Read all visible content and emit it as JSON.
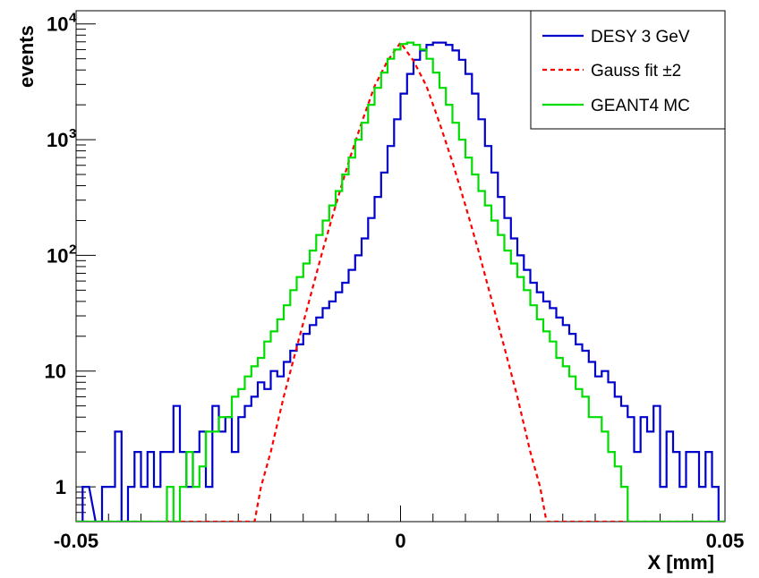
{
  "chart_data": {
    "type": "line",
    "title": "",
    "xlabel": "X [mm]",
    "ylabel": "events",
    "xlim": [
      -0.05,
      0.05
    ],
    "ylim": [
      0.5,
      13000
    ],
    "y_scale": "log",
    "grid": false,
    "legend_position": "top-right",
    "x_ticks": [
      {
        "value": -0.05,
        "label": "-0.05"
      },
      {
        "value": 0,
        "label": "0"
      },
      {
        "value": 0.05,
        "label": "0.05"
      }
    ],
    "y_ticks": [
      {
        "value": 1,
        "label": "1"
      },
      {
        "value": 10,
        "label": "10"
      },
      {
        "value": 100,
        "label": "10",
        "exp": "2"
      },
      {
        "value": 1000,
        "label": "10",
        "exp": "3"
      },
      {
        "value": 10000,
        "label": "10",
        "exp": "4"
      }
    ],
    "series": [
      {
        "name": "DESY 3 GeV",
        "color": "#0000cc",
        "style": "step",
        "points": [
          [
            -0.05,
            0.5
          ],
          [
            -0.049,
            1
          ],
          [
            -0.047,
            0.5
          ],
          [
            -0.046,
            1
          ],
          [
            -0.045,
            1
          ],
          [
            -0.044,
            3
          ],
          [
            -0.043,
            0.5
          ],
          [
            -0.042,
            1
          ],
          [
            -0.041,
            2
          ],
          [
            -0.04,
            1
          ],
          [
            -0.039,
            2
          ],
          [
            -0.038,
            1
          ],
          [
            -0.037,
            2
          ],
          [
            -0.036,
            2
          ],
          [
            -0.035,
            5
          ],
          [
            -0.034,
            2
          ],
          [
            -0.033,
            1
          ],
          [
            -0.032,
            2
          ],
          [
            -0.031,
            3
          ],
          [
            -0.03,
            1
          ],
          [
            -0.029,
            5
          ],
          [
            -0.028,
            3
          ],
          [
            -0.027,
            4
          ],
          [
            -0.026,
            2
          ],
          [
            -0.025,
            4
          ],
          [
            -0.024,
            5
          ],
          [
            -0.023,
            6
          ],
          [
            -0.022,
            8
          ],
          [
            -0.021,
            7
          ],
          [
            -0.02,
            10
          ],
          [
            -0.019,
            9
          ],
          [
            -0.018,
            12
          ],
          [
            -0.017,
            15
          ],
          [
            -0.016,
            17
          ],
          [
            -0.015,
            21
          ],
          [
            -0.014,
            25
          ],
          [
            -0.013,
            29
          ],
          [
            -0.012,
            35
          ],
          [
            -0.011,
            40
          ],
          [
            -0.01,
            48
          ],
          [
            -0.009,
            58
          ],
          [
            -0.008,
            75
          ],
          [
            -0.007,
            100
          ],
          [
            -0.006,
            140
          ],
          [
            -0.005,
            210
          ],
          [
            -0.004,
            320
          ],
          [
            -0.003,
            520
          ],
          [
            -0.002,
            880
          ],
          [
            -0.001,
            1500
          ],
          [
            0,
            2500
          ],
          [
            0.001,
            3700
          ],
          [
            0.002,
            4900
          ],
          [
            0.003,
            5900
          ],
          [
            0.004,
            6600
          ],
          [
            0.005,
            6900
          ],
          [
            0.006,
            6900
          ],
          [
            0.007,
            6600
          ],
          [
            0.008,
            5900
          ],
          [
            0.009,
            4900
          ],
          [
            0.01,
            3700
          ],
          [
            0.011,
            2500
          ],
          [
            0.012,
            1500
          ],
          [
            0.013,
            880
          ],
          [
            0.014,
            520
          ],
          [
            0.015,
            320
          ],
          [
            0.016,
            210
          ],
          [
            0.017,
            140
          ],
          [
            0.018,
            100
          ],
          [
            0.019,
            75
          ],
          [
            0.02,
            58
          ],
          [
            0.021,
            48
          ],
          [
            0.022,
            40
          ],
          [
            0.023,
            35
          ],
          [
            0.024,
            29
          ],
          [
            0.025,
            25
          ],
          [
            0.026,
            21
          ],
          [
            0.027,
            17
          ],
          [
            0.028,
            15
          ],
          [
            0.029,
            12
          ],
          [
            0.03,
            9
          ],
          [
            0.031,
            10
          ],
          [
            0.032,
            8
          ],
          [
            0.033,
            6
          ],
          [
            0.034,
            5
          ],
          [
            0.035,
            4
          ],
          [
            0.036,
            2
          ],
          [
            0.037,
            4
          ],
          [
            0.038,
            3
          ],
          [
            0.039,
            5
          ],
          [
            0.04,
            1
          ],
          [
            0.041,
            3
          ],
          [
            0.042,
            2
          ],
          [
            0.043,
            1
          ],
          [
            0.044,
            2
          ],
          [
            0.045,
            2
          ],
          [
            0.046,
            1
          ],
          [
            0.047,
            2
          ],
          [
            0.048,
            1
          ],
          [
            0.049,
            0.5
          ],
          [
            0.05,
            0.5
          ]
        ]
      },
      {
        "name": "Gauss fit ±2",
        "color": "#ff0000",
        "style": "dashed",
        "points": [
          [
            -0.05,
            0.5
          ],
          [
            -0.0225,
            0.5
          ],
          [
            -0.0215,
            1
          ],
          [
            -0.02,
            2
          ],
          [
            -0.018,
            6
          ],
          [
            -0.016,
            16
          ],
          [
            -0.014,
            42
          ],
          [
            -0.012,
            110
          ],
          [
            -0.01,
            270
          ],
          [
            -0.008,
            640
          ],
          [
            -0.006,
            1400
          ],
          [
            -0.004,
            2900
          ],
          [
            -0.002,
            4800
          ],
          [
            0,
            6900
          ],
          [
            0.002,
            4800
          ],
          [
            0.004,
            2900
          ],
          [
            0.006,
            1400
          ],
          [
            0.008,
            640
          ],
          [
            0.01,
            270
          ],
          [
            0.012,
            110
          ],
          [
            0.014,
            42
          ],
          [
            0.016,
            16
          ],
          [
            0.018,
            6
          ],
          [
            0.02,
            2
          ],
          [
            0.0215,
            1
          ],
          [
            0.0225,
            0.5
          ],
          [
            0.05,
            0.5
          ]
        ]
      },
      {
        "name": "GEANT4 MC",
        "color": "#00dd00",
        "style": "step",
        "points": [
          [
            -0.05,
            0.5
          ],
          [
            -0.037,
            0.5
          ],
          [
            -0.036,
            1
          ],
          [
            -0.035,
            0.5
          ],
          [
            -0.034,
            1
          ],
          [
            -0.033,
            2
          ],
          [
            -0.032,
            1
          ],
          [
            -0.031,
            1.5
          ],
          [
            -0.03,
            3
          ],
          [
            -0.029,
            3
          ],
          [
            -0.028,
            4
          ],
          [
            -0.027,
            4
          ],
          [
            -0.026,
            6
          ],
          [
            -0.025,
            7
          ],
          [
            -0.024,
            9
          ],
          [
            -0.023,
            11
          ],
          [
            -0.022,
            13
          ],
          [
            -0.021,
            18
          ],
          [
            -0.02,
            22
          ],
          [
            -0.019,
            28
          ],
          [
            -0.018,
            37
          ],
          [
            -0.017,
            50
          ],
          [
            -0.016,
            65
          ],
          [
            -0.015,
            85
          ],
          [
            -0.014,
            110
          ],
          [
            -0.013,
            150
          ],
          [
            -0.012,
            200
          ],
          [
            -0.011,
            270
          ],
          [
            -0.01,
            360
          ],
          [
            -0.009,
            500
          ],
          [
            -0.008,
            700
          ],
          [
            -0.007,
            1000
          ],
          [
            -0.006,
            1400
          ],
          [
            -0.005,
            2000
          ],
          [
            -0.004,
            2800
          ],
          [
            -0.003,
            3800
          ],
          [
            -0.002,
            5000
          ],
          [
            -0.001,
            6000
          ],
          [
            0,
            6700
          ],
          [
            0.001,
            6900
          ],
          [
            0.002,
            6600
          ],
          [
            0.003,
            6000
          ],
          [
            0.004,
            5000
          ],
          [
            0.005,
            3800
          ],
          [
            0.006,
            2800
          ],
          [
            0.007,
            2000
          ],
          [
            0.008,
            1400
          ],
          [
            0.009,
            1000
          ],
          [
            0.01,
            700
          ],
          [
            0.011,
            500
          ],
          [
            0.012,
            360
          ],
          [
            0.013,
            270
          ],
          [
            0.014,
            200
          ],
          [
            0.015,
            150
          ],
          [
            0.016,
            110
          ],
          [
            0.017,
            85
          ],
          [
            0.018,
            65
          ],
          [
            0.019,
            50
          ],
          [
            0.02,
            37
          ],
          [
            0.021,
            28
          ],
          [
            0.022,
            22
          ],
          [
            0.023,
            18
          ],
          [
            0.024,
            13
          ],
          [
            0.025,
            11
          ],
          [
            0.026,
            9
          ],
          [
            0.027,
            7
          ],
          [
            0.028,
            6
          ],
          [
            0.029,
            4
          ],
          [
            0.03,
            4
          ],
          [
            0.031,
            3
          ],
          [
            0.032,
            2
          ],
          [
            0.033,
            1.5
          ],
          [
            0.034,
            1
          ],
          [
            0.035,
            0.5
          ],
          [
            0.05,
            0.5
          ]
        ]
      }
    ]
  }
}
